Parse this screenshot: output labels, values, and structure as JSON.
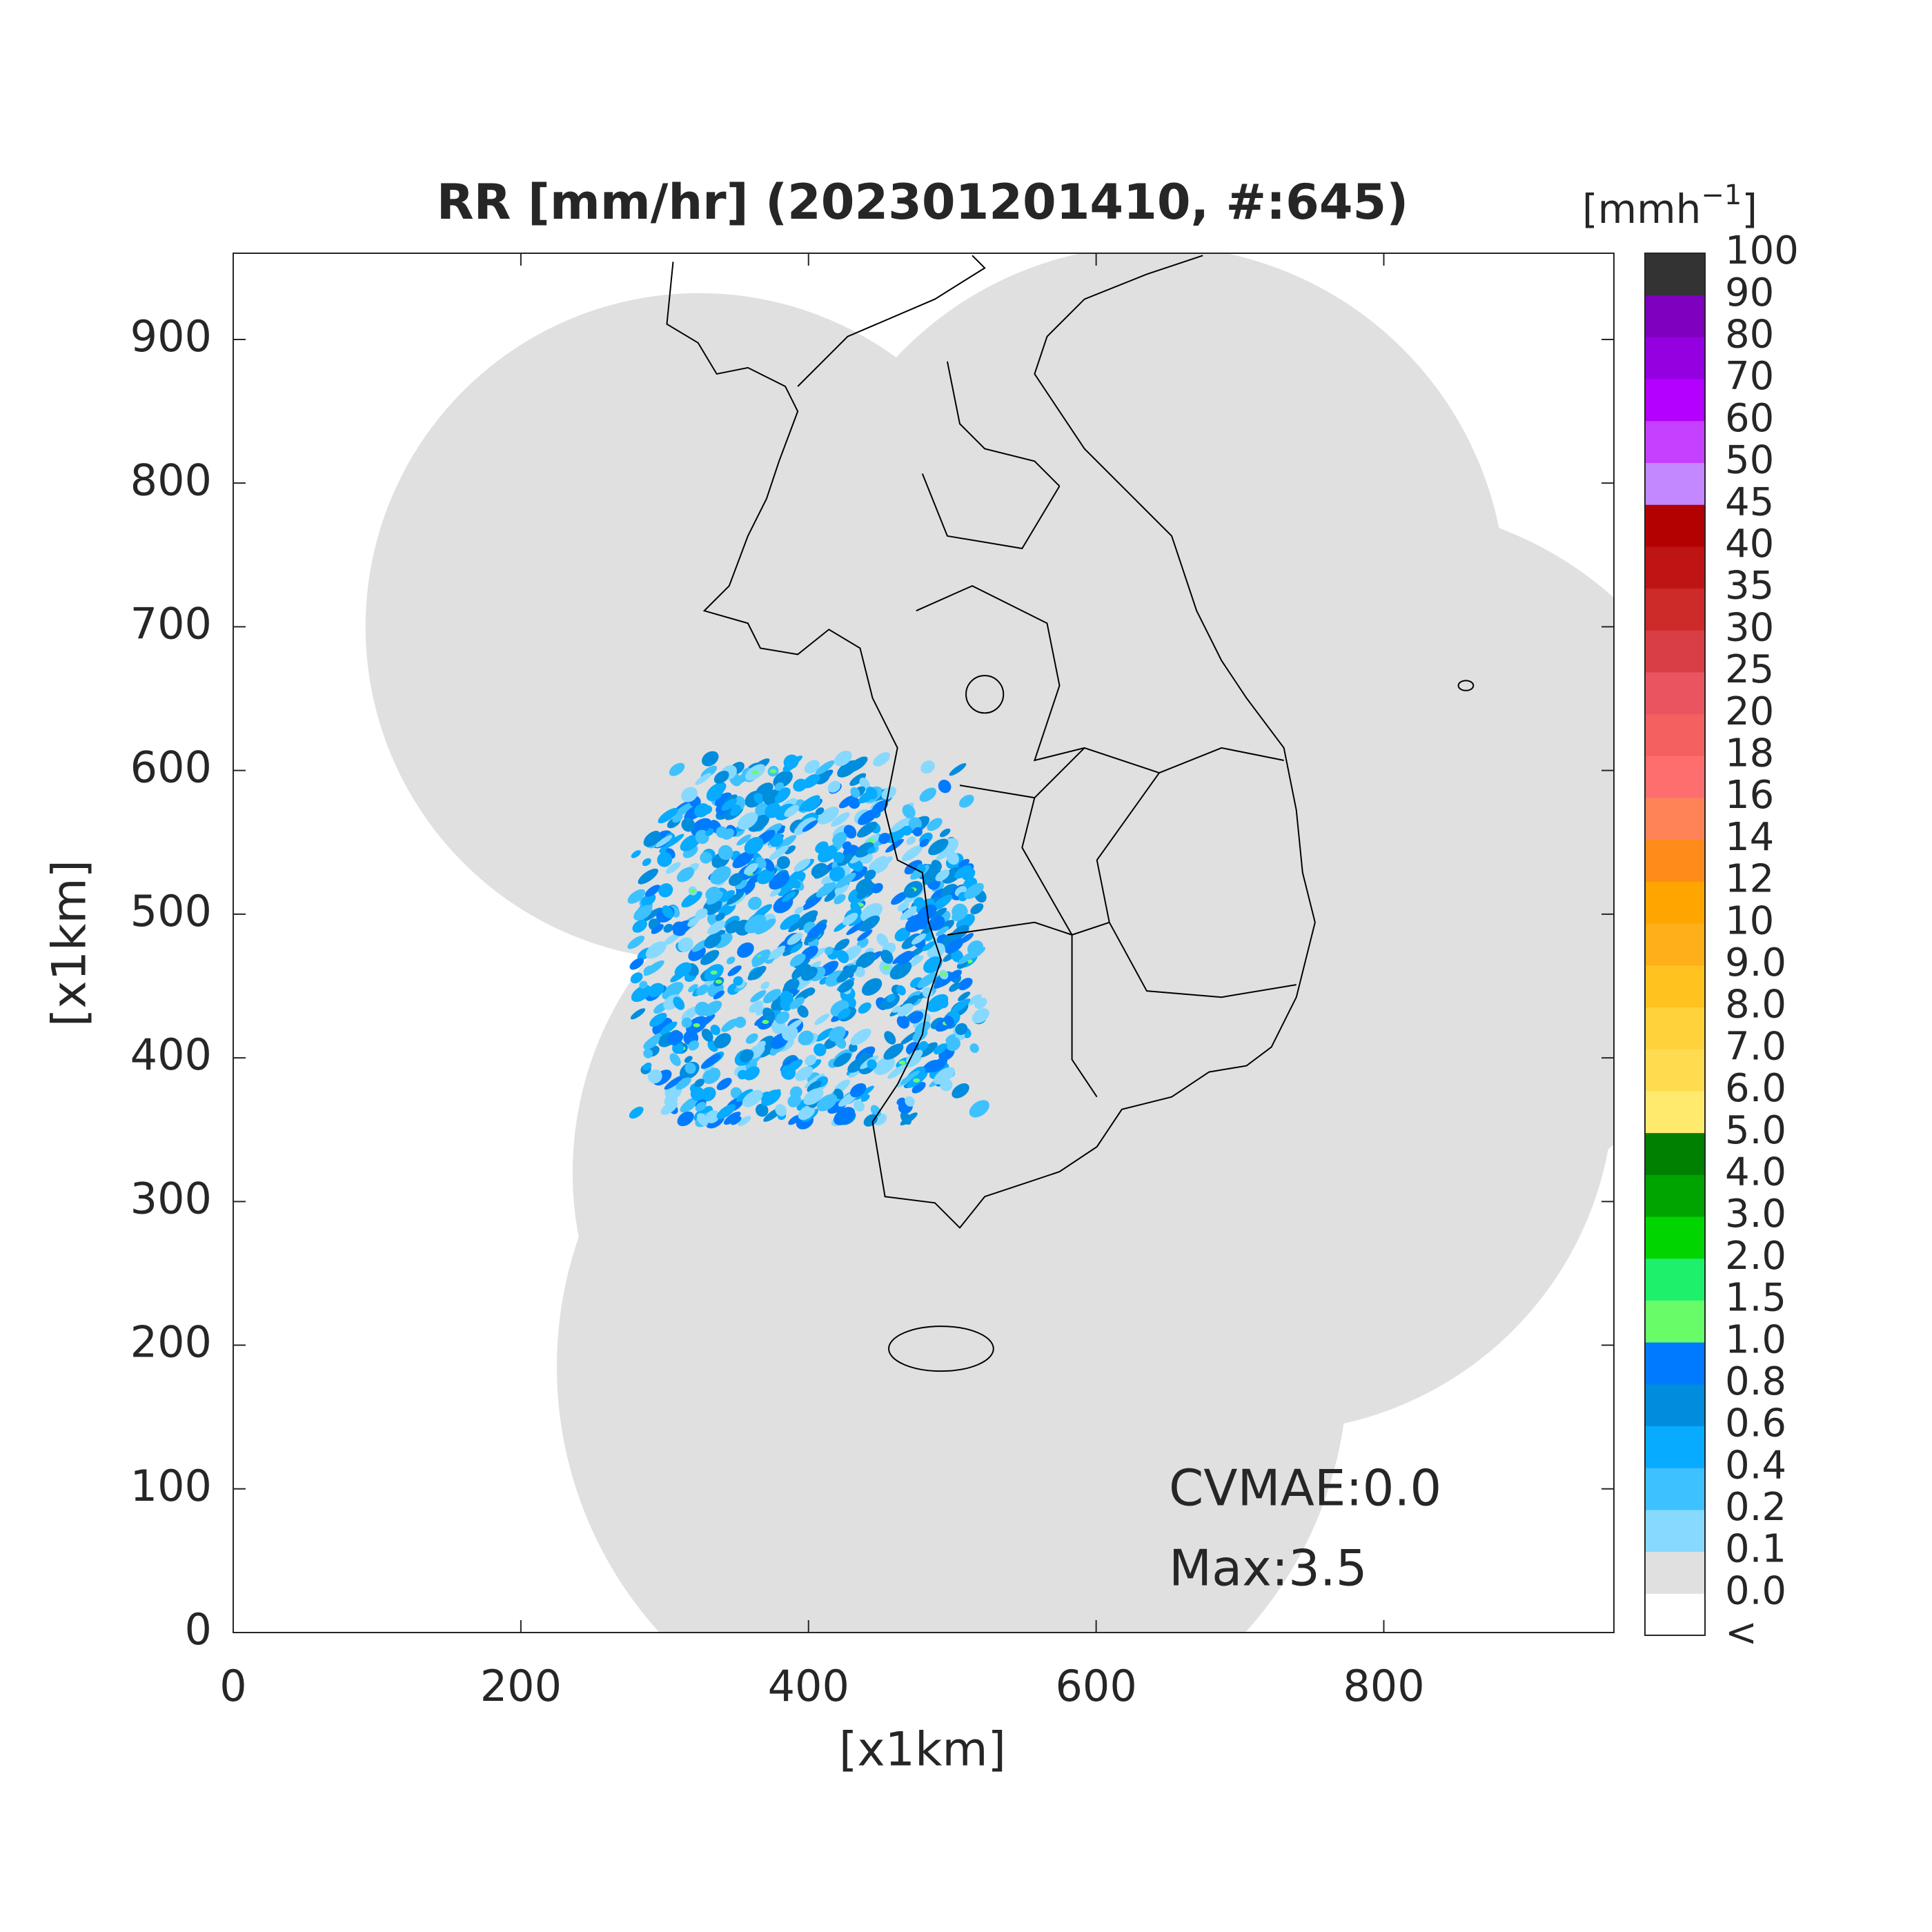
{
  "chart_data": {
    "type": "map",
    "title": "RR [mm/hr] (202301201410, #:645)",
    "xlabel": "[x1km]",
    "ylabel": "[x1km]",
    "xlim": [
      0,
      960
    ],
    "ylim": [
      0,
      960
    ],
    "xticks": [
      0,
      200,
      400,
      600,
      800
    ],
    "yticks": [
      0,
      100,
      200,
      300,
      400,
      500,
      600,
      700,
      800,
      900
    ],
    "annotations": [
      "CVMAE:0.0",
      "Max:3.5"
    ],
    "colorbar": {
      "unit": "[mmh",
      "unit_sup": "−1",
      "unit_end": "]",
      "labels": [
        "<",
        "0.0",
        "0.1",
        "0.2",
        "0.4",
        "0.6",
        "0.8",
        "1.0",
        "1.5",
        "2.0",
        "3.0",
        "4.0",
        "5.0",
        "6.0",
        "7.0",
        "8.0",
        "9.0",
        "10",
        "12",
        "14",
        "16",
        "18",
        "20",
        "25",
        "30",
        "35",
        "40",
        "45",
        "50",
        "60",
        "70",
        "80",
        "90",
        "100"
      ],
      "colors": [
        "#ffffff",
        "#e0e0e0",
        "#87d9ff",
        "#3ec1ff",
        "#07abff",
        "#008dde",
        "#007bff",
        "#69fc69",
        "#1ef06b",
        "#00d500",
        "#00a400",
        "#008000",
        "#ffea6e",
        "#ffdc4f",
        "#ffd13b",
        "#ffc21f",
        "#ffaf1a",
        "#ffa500",
        "#ff8c1a",
        "#ff8357",
        "#ff6e6e",
        "#f46060",
        "#ea5461",
        "#d93e45",
        "#cd2a2a",
        "#bf1414",
        "#b30000",
        "#c387ff",
        "#c640ff",
        "#b300ff",
        "#9500e0",
        "#7f00bf",
        "#333333"
      ]
    }
  }
}
